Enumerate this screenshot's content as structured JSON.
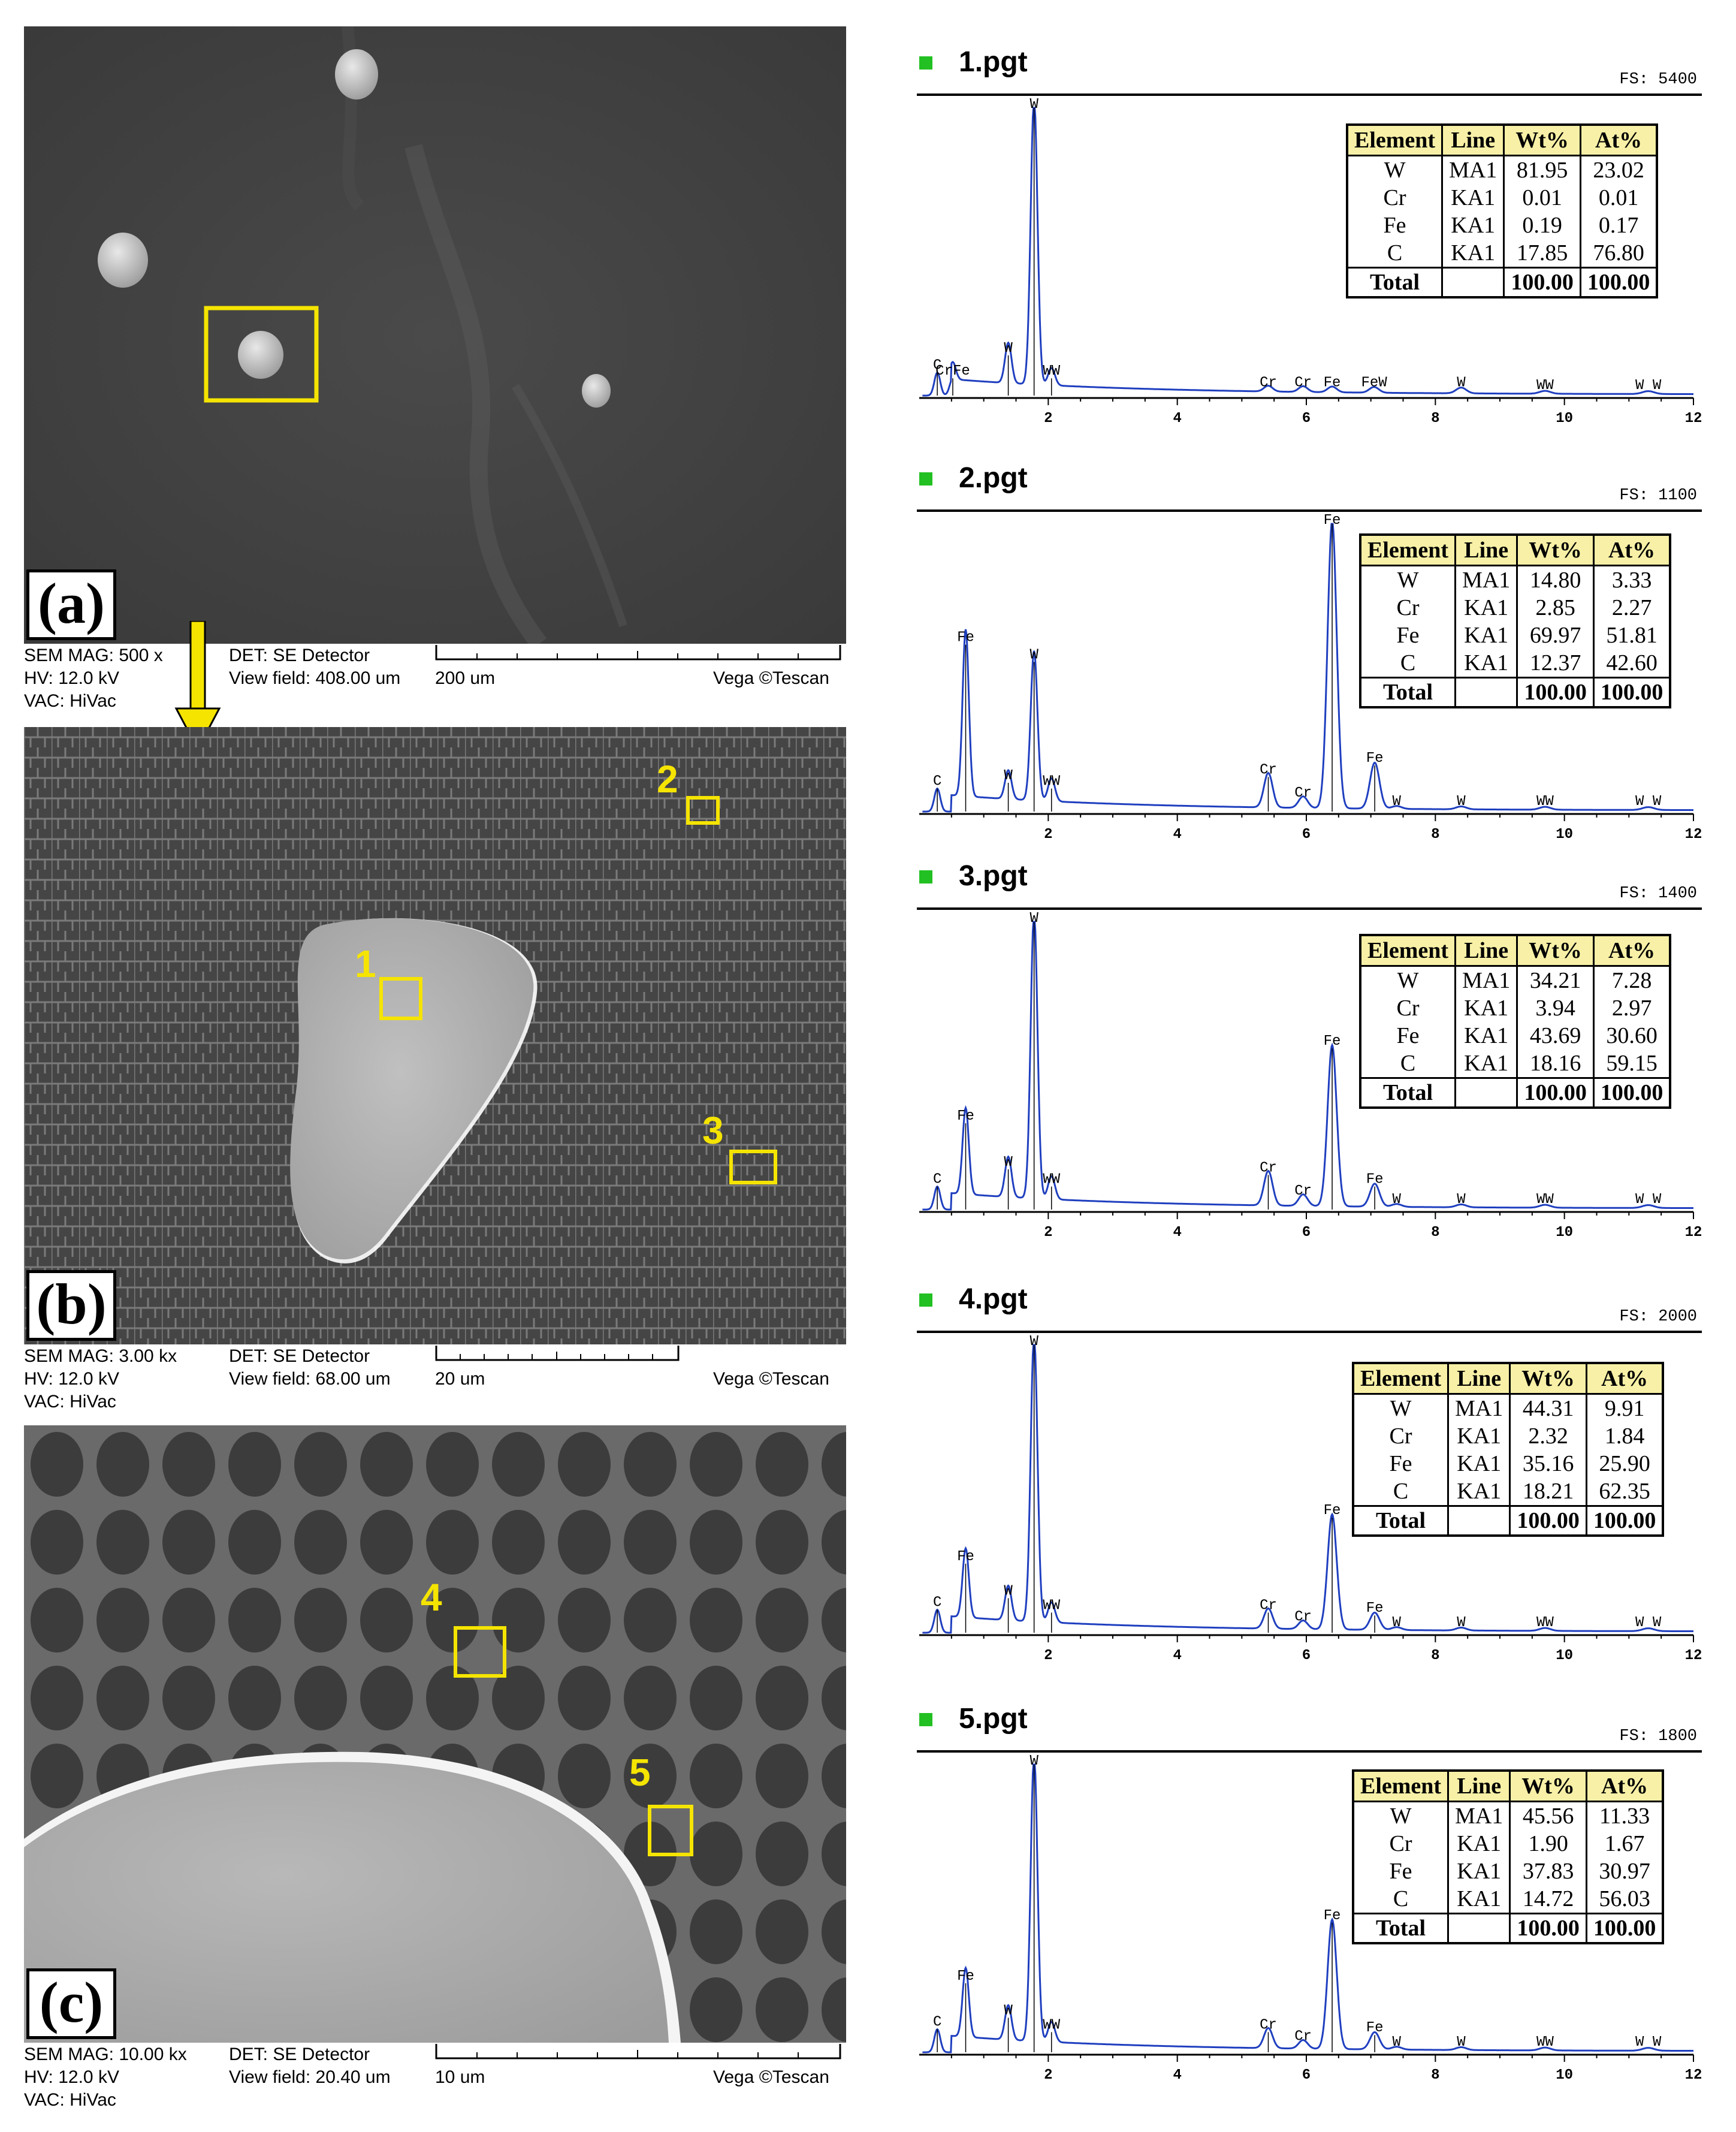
{
  "panels": [
    {
      "letter": "(a)",
      "info": {
        "sem_mag": "SEM MAG: 500 x",
        "hv": "HV:   12.0 kV",
        "vac": "VAC: HiVac",
        "det": "DET: SE Detector",
        "view_field": "View field: 408.00 um",
        "scale": "200 um",
        "brand": "Vega ©Tescan"
      }
    },
    {
      "letter": "(b)",
      "roi_labels": [
        "1",
        "2",
        "3"
      ],
      "info": {
        "sem_mag": "SEM MAG: 3.00 kx",
        "hv": "HV:   12.0 kV",
        "vac": "VAC: HiVac",
        "det": "DET: SE Detector",
        "view_field": "View field: 68.00 um",
        "scale": "20 um",
        "brand": "Vega ©Tescan"
      }
    },
    {
      "letter": "(c)",
      "roi_labels": [
        "4",
        "5"
      ],
      "info": {
        "sem_mag": "SEM MAG: 10.00 kx",
        "hv": "HV:   12.0 kV",
        "vac": "VAC: HiVac",
        "det": "DET: SE Detector",
        "view_field": "View field: 20.40 um",
        "scale": "10 um",
        "brand": "Vega ©Tescan"
      }
    }
  ],
  "colors": {
    "roi_box": "#f5e400",
    "arrow": "#f5e400",
    "spectrum": "#1f3fbf",
    "table_header": "#f7f0a6",
    "bullet": "#22c022"
  },
  "table_headers": [
    "Element",
    "Line",
    "Wt%",
    "At%"
  ],
  "chart_data": [
    {
      "type": "line",
      "title": "1.pgt",
      "fs": "FS: 5400",
      "x_ticks": [
        "2",
        "4",
        "6",
        "8",
        "10",
        "12"
      ],
      "xlim": [
        0,
        12
      ],
      "peaks": [
        {
          "label": "C",
          "x": 0.28,
          "h": 0.08
        },
        {
          "label": "CrFe",
          "x": 0.52,
          "h": 0.06
        },
        {
          "label": "W",
          "x": 1.38,
          "h": 0.14
        },
        {
          "label": "W",
          "x": 1.78,
          "h": 1.0
        },
        {
          "label": "WW",
          "x": 2.05,
          "h": 0.06
        },
        {
          "label": "Cr",
          "x": 5.41,
          "h": 0.02
        },
        {
          "label": "Cr",
          "x": 5.95,
          "h": 0.02
        },
        {
          "label": "Fe",
          "x": 6.4,
          "h": 0.02
        },
        {
          "label": "FeW",
          "x": 7.05,
          "h": 0.02
        },
        {
          "label": "W",
          "x": 8.4,
          "h": 0.02
        },
        {
          "label": "WW",
          "x": 9.7,
          "h": 0.01
        },
        {
          "label": "W W",
          "x": 11.3,
          "h": 0.01
        }
      ],
      "table": [
        [
          "W",
          "MA1",
          "81.95",
          "23.02"
        ],
        [
          "Cr",
          "KA1",
          "0.01",
          "0.01"
        ],
        [
          "Fe",
          "KA1",
          "0.19",
          "0.17"
        ],
        [
          "C",
          "KA1",
          "17.85",
          "76.80"
        ],
        [
          "Total",
          "",
          "100.00",
          "100.00"
        ]
      ]
    },
    {
      "type": "line",
      "title": "2.pgt",
      "fs": "FS: 1100",
      "x_ticks": [
        "2",
        "4",
        "6",
        "8",
        "10",
        "12"
      ],
      "xlim": [
        0,
        12
      ],
      "peaks": [
        {
          "label": "C",
          "x": 0.28,
          "h": 0.08
        },
        {
          "label": "Fe",
          "x": 0.72,
          "h": 0.58
        },
        {
          "label": "W",
          "x": 1.38,
          "h": 0.1
        },
        {
          "label": "W",
          "x": 1.78,
          "h": 0.52
        },
        {
          "label": "WW",
          "x": 2.05,
          "h": 0.08
        },
        {
          "label": "Cr",
          "x": 5.41,
          "h": 0.12
        },
        {
          "label": "Cr",
          "x": 5.95,
          "h": 0.04
        },
        {
          "label": "Fe",
          "x": 6.4,
          "h": 1.0
        },
        {
          "label": "Fe",
          "x": 7.06,
          "h": 0.16
        },
        {
          "label": "W",
          "x": 7.4,
          "h": 0.01
        },
        {
          "label": "W",
          "x": 8.4,
          "h": 0.01
        },
        {
          "label": "WW",
          "x": 9.7,
          "h": 0.01
        },
        {
          "label": "W W",
          "x": 11.3,
          "h": 0.01
        }
      ],
      "table": [
        [
          "W",
          "MA1",
          "14.80",
          "3.33"
        ],
        [
          "Cr",
          "KA1",
          "2.85",
          "2.27"
        ],
        [
          "Fe",
          "KA1",
          "69.97",
          "51.81"
        ],
        [
          "C",
          "KA1",
          "12.37",
          "42.60"
        ],
        [
          "Total",
          "",
          "100.00",
          "100.00"
        ]
      ]
    },
    {
      "type": "line",
      "title": "3.pgt",
      "fs": "FS: 1400",
      "x_ticks": [
        "2",
        "4",
        "6",
        "8",
        "10",
        "12"
      ],
      "xlim": [
        0,
        12
      ],
      "peaks": [
        {
          "label": "C",
          "x": 0.28,
          "h": 0.08
        },
        {
          "label": "Fe",
          "x": 0.72,
          "h": 0.3
        },
        {
          "label": "W",
          "x": 1.38,
          "h": 0.14
        },
        {
          "label": "W",
          "x": 1.78,
          "h": 1.0
        },
        {
          "label": "WW",
          "x": 2.05,
          "h": 0.08
        },
        {
          "label": "Cr",
          "x": 5.41,
          "h": 0.12
        },
        {
          "label": "Cr",
          "x": 5.95,
          "h": 0.04
        },
        {
          "label": "Fe",
          "x": 6.4,
          "h": 0.56
        },
        {
          "label": "Fe",
          "x": 7.06,
          "h": 0.08
        },
        {
          "label": "W",
          "x": 7.4,
          "h": 0.01
        },
        {
          "label": "W",
          "x": 8.4,
          "h": 0.01
        },
        {
          "label": "WW",
          "x": 9.7,
          "h": 0.01
        },
        {
          "label": "W W",
          "x": 11.3,
          "h": 0.01
        }
      ],
      "table": [
        [
          "W",
          "MA1",
          "34.21",
          "7.28"
        ],
        [
          "Cr",
          "KA1",
          "3.94",
          "2.97"
        ],
        [
          "Fe",
          "KA1",
          "43.69",
          "30.60"
        ],
        [
          "C",
          "KA1",
          "18.16",
          "59.15"
        ],
        [
          "Total",
          "",
          "100.00",
          "100.00"
        ]
      ]
    },
    {
      "type": "line",
      "title": "4.pgt",
      "fs": "FS: 2000",
      "x_ticks": [
        "2",
        "4",
        "6",
        "8",
        "10",
        "12"
      ],
      "xlim": [
        0,
        12
      ],
      "peaks": [
        {
          "label": "C",
          "x": 0.28,
          "h": 0.08
        },
        {
          "label": "Fe",
          "x": 0.72,
          "h": 0.24
        },
        {
          "label": "W",
          "x": 1.38,
          "h": 0.12
        },
        {
          "label": "W",
          "x": 1.78,
          "h": 1.0
        },
        {
          "label": "WW",
          "x": 2.05,
          "h": 0.07
        },
        {
          "label": "Cr",
          "x": 5.41,
          "h": 0.07
        },
        {
          "label": "Cr",
          "x": 5.95,
          "h": 0.03
        },
        {
          "label": "Fe",
          "x": 6.4,
          "h": 0.4
        },
        {
          "label": "Fe",
          "x": 7.06,
          "h": 0.06
        },
        {
          "label": "W",
          "x": 7.4,
          "h": 0.01
        },
        {
          "label": "W",
          "x": 8.4,
          "h": 0.01
        },
        {
          "label": "WW",
          "x": 9.7,
          "h": 0.01
        },
        {
          "label": "W W",
          "x": 11.3,
          "h": 0.01
        }
      ],
      "table": [
        [
          "W",
          "MA1",
          "44.31",
          "9.91"
        ],
        [
          "Cr",
          "KA1",
          "2.32",
          "1.84"
        ],
        [
          "Fe",
          "KA1",
          "35.16",
          "25.90"
        ],
        [
          "C",
          "KA1",
          "18.21",
          "62.35"
        ],
        [
          "Total",
          "",
          "100.00",
          "100.00"
        ]
      ]
    },
    {
      "type": "line",
      "title": "5.pgt",
      "fs": "FS: 1800",
      "x_ticks": [
        "2",
        "4",
        "6",
        "8",
        "10",
        "12"
      ],
      "xlim": [
        0,
        12
      ],
      "peaks": [
        {
          "label": "C",
          "x": 0.28,
          "h": 0.08
        },
        {
          "label": "Fe",
          "x": 0.72,
          "h": 0.24
        },
        {
          "label": "W",
          "x": 1.38,
          "h": 0.12
        },
        {
          "label": "W",
          "x": 1.78,
          "h": 1.0
        },
        {
          "label": "WW",
          "x": 2.05,
          "h": 0.07
        },
        {
          "label": "Cr",
          "x": 5.41,
          "h": 0.07
        },
        {
          "label": "Cr",
          "x": 5.95,
          "h": 0.03
        },
        {
          "label": "Fe",
          "x": 6.4,
          "h": 0.45
        },
        {
          "label": "Fe",
          "x": 7.06,
          "h": 0.06
        },
        {
          "label": "W",
          "x": 7.4,
          "h": 0.01
        },
        {
          "label": "W",
          "x": 8.4,
          "h": 0.01
        },
        {
          "label": "WW",
          "x": 9.7,
          "h": 0.01
        },
        {
          "label": "W W",
          "x": 11.3,
          "h": 0.01
        }
      ],
      "table": [
        [
          "W",
          "MA1",
          "45.56",
          "11.33"
        ],
        [
          "Cr",
          "KA1",
          "1.90",
          "1.67"
        ],
        [
          "Fe",
          "KA1",
          "37.83",
          "30.97"
        ],
        [
          "C",
          "KA1",
          "14.72",
          "56.03"
        ],
        [
          "Total",
          "",
          "100.00",
          "100.00"
        ]
      ]
    }
  ]
}
